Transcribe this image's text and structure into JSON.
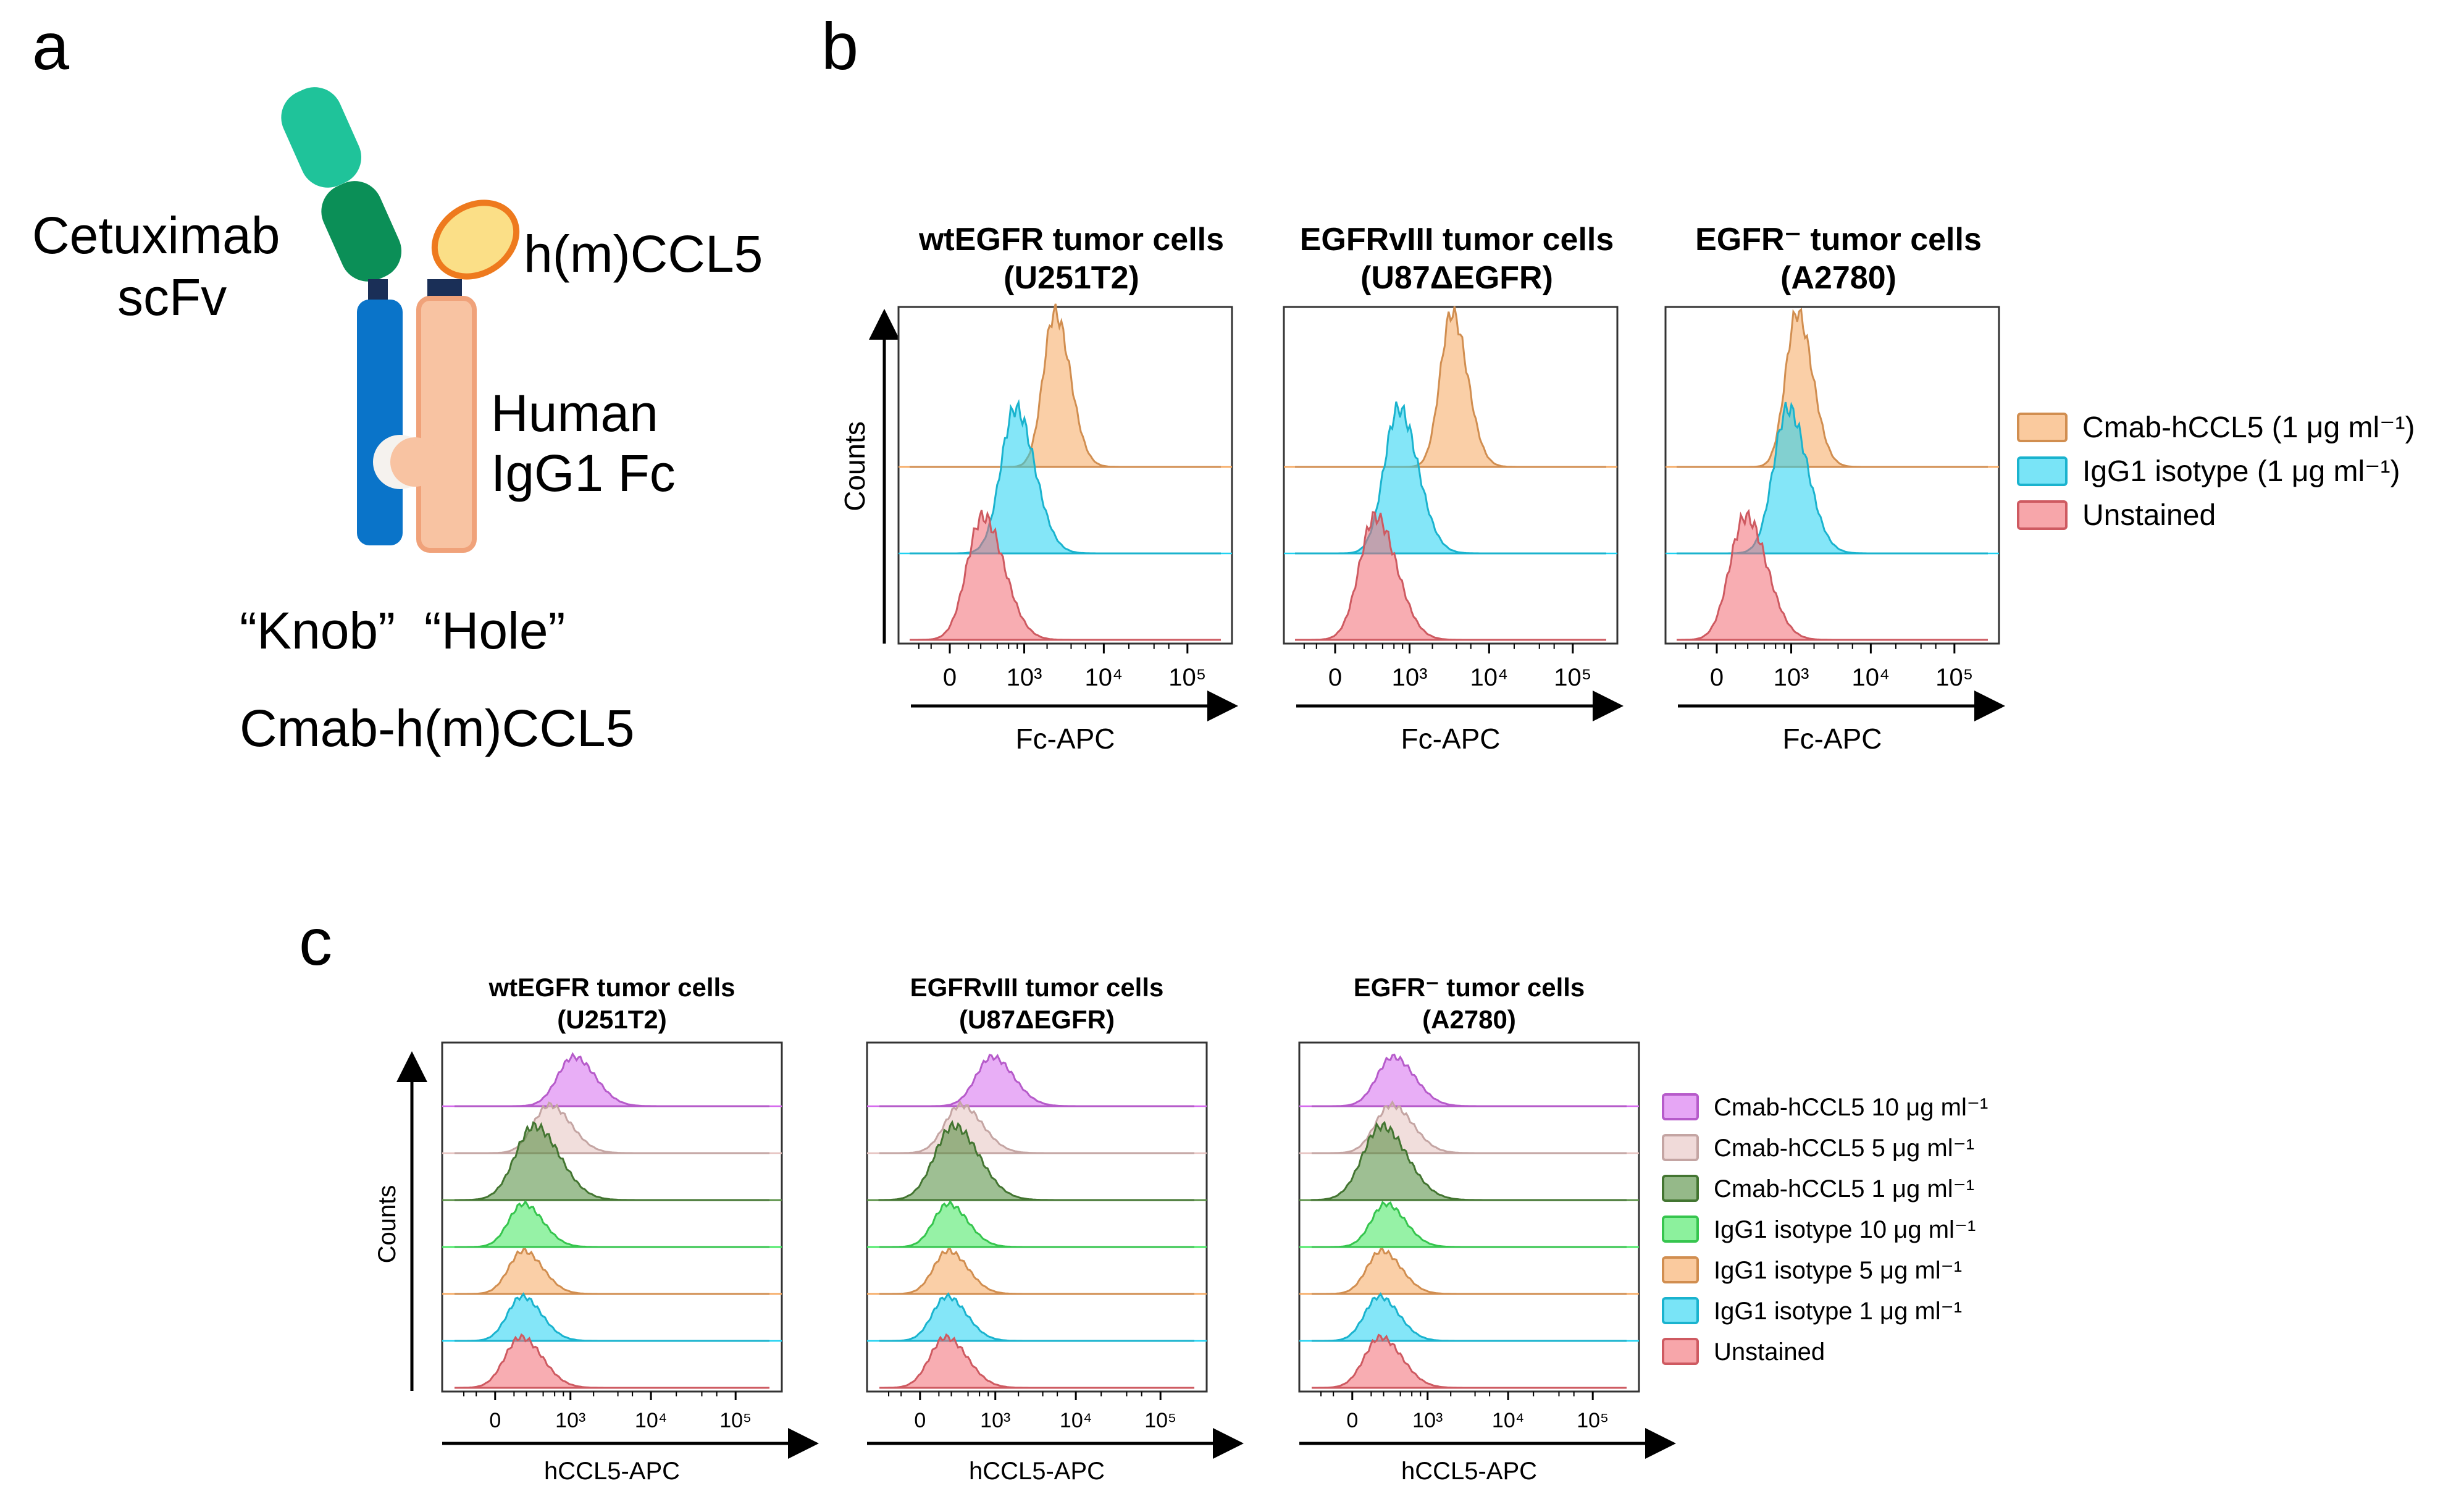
{
  "panel_letters": {
    "a": "a",
    "b": "b",
    "c": "c"
  },
  "panel_a": {
    "scfv_label_1": "Cetuximab",
    "scfv_label_2": "scFv",
    "ccl5_label": "h(m)CCL5",
    "fc_label_1": "Human",
    "fc_label_2": "IgG1 Fc",
    "knob_hole": "“Knob”  “Hole”",
    "construct_name": "Cmab-h(m)CCL5",
    "colors": {
      "scfv_light": "#1fc39a",
      "scfv_dark": "#0b8f57",
      "knob": "#0a74c9",
      "hole": "#f8c3a2",
      "hole_border": "#f0a27a",
      "ccl5_fill": "#fbdf87",
      "ccl5_border": "#ee7a1e",
      "hinge": "#1a2f57"
    }
  },
  "chart_data": [
    {
      "id": "b",
      "type": "histogram-overlay",
      "ylabel": "Counts",
      "xlabel": "Fc-APC",
      "xscale": "biexponential",
      "xticks": [
        "0",
        "10³",
        "10⁴",
        "10⁵"
      ],
      "xtick_values": [
        0,
        1000,
        10000,
        100000
      ],
      "xlim": [
        -300,
        250000
      ],
      "legend": [
        {
          "label": "Cmab-hCCL5 (1 μg ml⁻¹)",
          "color": "#f6a75e"
        },
        {
          "label": "IgG1 isotype (1 μg ml⁻¹)",
          "color": "#1fd2f2"
        },
        {
          "label": "Unstained",
          "color": "#f26a72"
        }
      ],
      "panels": [
        {
          "title_1": "wtEGFR tumor cells",
          "title_2": "(U251T2)",
          "peaks": [
            2500,
            750,
            220
          ]
        },
        {
          "title_1": "EGFRvIII tumor cells",
          "title_2": "(U87ΔEGFR)",
          "peaks": [
            3500,
            700,
            300
          ]
        },
        {
          "title_1": "EGFR⁻ tumor cells",
          "title_2": "(A2780)",
          "peaks": [
            1200,
            900,
            180
          ]
        }
      ]
    },
    {
      "id": "c",
      "type": "histogram-overlay",
      "ylabel": "Counts",
      "xlabel": "hCCL5-APC",
      "xscale": "biexponential",
      "xticks": [
        "0",
        "10³",
        "10⁴",
        "10⁵"
      ],
      "xtick_values": [
        0,
        1000,
        10000,
        100000
      ],
      "xlim": [
        -300,
        250000
      ],
      "legend": [
        {
          "label": "Cmab-hCCL5 10 μg ml⁻¹",
          "color": "#d66bee"
        },
        {
          "label": "Cmab-hCCL5 5 μg ml⁻¹",
          "color": "#e6c2c0"
        },
        {
          "label": "Cmab-hCCL5 1 μg ml⁻¹",
          "color": "#4f8a3a"
        },
        {
          "label": "IgG1 isotype 10 μg ml⁻¹",
          "color": "#3fe85c"
        },
        {
          "label": "IgG1 isotype 5 μg ml⁻¹",
          "color": "#f6a75e"
        },
        {
          "label": "IgG1 isotype 1 μg ml⁻¹",
          "color": "#1fd2f2"
        },
        {
          "label": "Unstained",
          "color": "#f26a72"
        }
      ],
      "panels": [
        {
          "title_1": "wtEGFR tumor cells",
          "title_2": "(U251T2)",
          "peaks": [
            1100,
            500,
            280,
            170,
            170,
            160,
            150
          ]
        },
        {
          "title_1": "EGFRvIII tumor cells",
          "title_2": "(U87ΔEGFR)",
          "peaks": [
            900,
            300,
            220,
            170,
            170,
            160,
            150
          ]
        },
        {
          "title_1": "EGFR⁻ tumor cells",
          "title_2": "(A2780)",
          "peaks": [
            300,
            280,
            180,
            220,
            180,
            160,
            170
          ]
        }
      ]
    }
  ]
}
